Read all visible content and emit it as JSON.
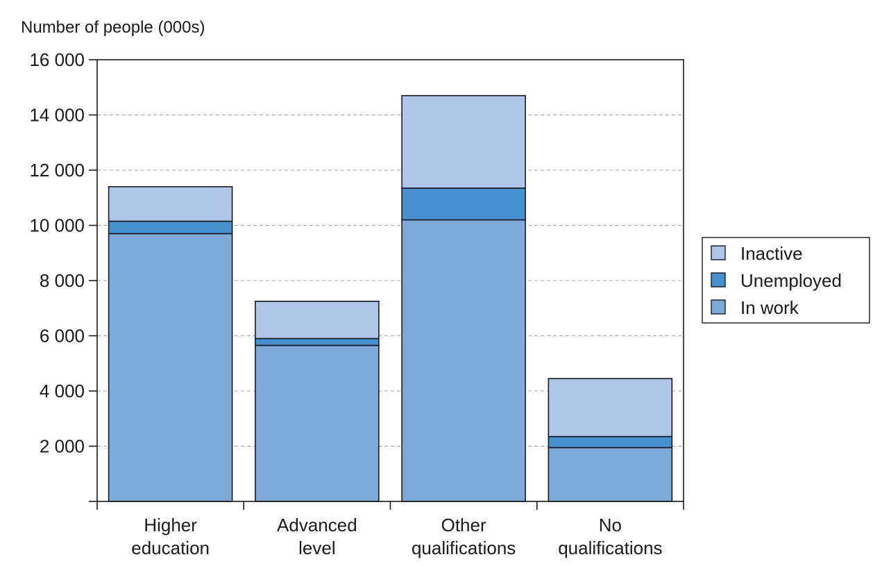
{
  "chart_data": {
    "type": "bar",
    "stacked": true,
    "title": "",
    "ylabel": "Number of people (000s)",
    "xlabel": "",
    "ylim": [
      0,
      16000
    ],
    "yticks": [
      2000,
      4000,
      6000,
      8000,
      10000,
      12000,
      14000,
      16000
    ],
    "ytick_labels": [
      "2 000",
      "4 000",
      "6 000",
      "8 000",
      "10 000",
      "12 000",
      "14 000",
      "16 000"
    ],
    "categories": [
      "Higher education",
      "Advanced level",
      "Other qualifications",
      "No qualifications"
    ],
    "category_lines": [
      [
        "Higher",
        "education"
      ],
      [
        "Advanced",
        "level"
      ],
      [
        "Other",
        "qualifications"
      ],
      [
        "No",
        "qualifications"
      ]
    ],
    "series": [
      {
        "name": "In work",
        "values": [
          9700,
          5650,
          10200,
          1950
        ],
        "color": "#7eaad9"
      },
      {
        "name": "Unemployed",
        "values": [
          450,
          250,
          1150,
          400
        ],
        "color": "#4790cf"
      },
      {
        "name": "Inactive",
        "values": [
          1250,
          1350,
          3350,
          2100
        ],
        "color": "#afc6e8"
      }
    ],
    "legend": {
      "position": "right",
      "entries": [
        "Inactive",
        "Unemployed",
        "In work"
      ]
    },
    "grid": {
      "y": true,
      "style": "dashed"
    }
  }
}
